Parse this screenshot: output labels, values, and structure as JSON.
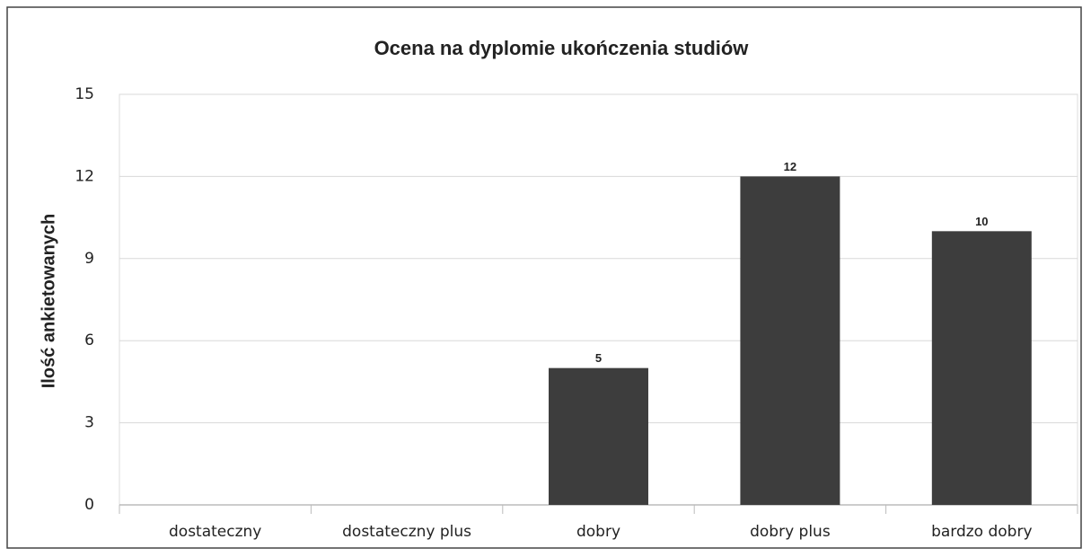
{
  "chart_data": {
    "type": "bar",
    "title": "Ocena na dyplomie ukończenia studiów",
    "y_label": "Ilość ankietowanych",
    "categories": [
      "dostateczny",
      "dostateczny plus",
      "dobry",
      "dobry plus",
      "bardzo dobry"
    ],
    "values": [
      0,
      0,
      5,
      12,
      10
    ],
    "value_labels": [
      null,
      null,
      "5",
      "12",
      "10"
    ],
    "color": "#3d3d3d",
    "ylim": [
      0,
      15
    ],
    "yticks": [
      0,
      3,
      6,
      9,
      12,
      15
    ],
    "grid": true
  }
}
